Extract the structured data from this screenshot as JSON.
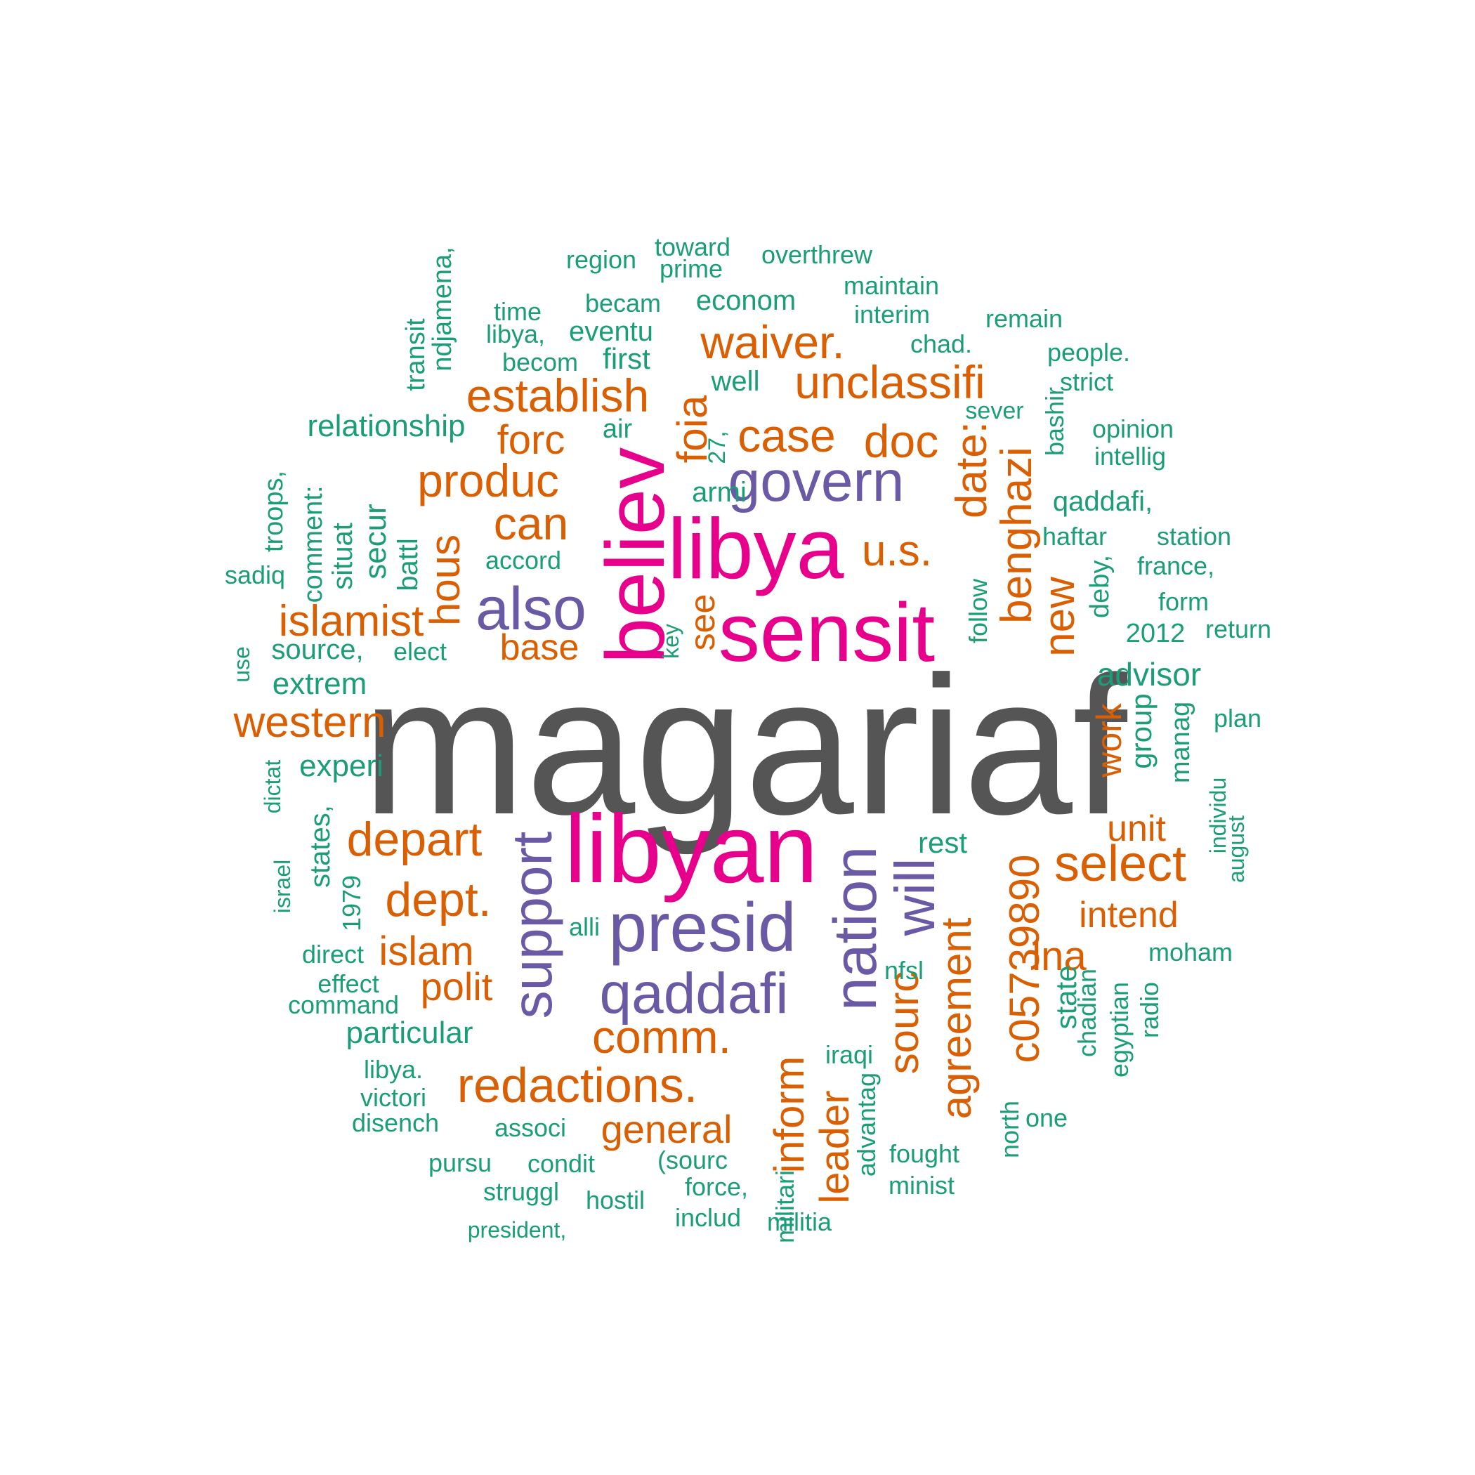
{
  "colors": {
    "top": "#555555",
    "magenta": "#e7008b",
    "purple": "#6a5aa6",
    "orange": "#d95f02",
    "green": "#1b9e77"
  },
  "words": [
    {
      "text": "magariaf",
      "tier": 0,
      "vertical": false
    },
    {
      "text": "libyan",
      "tier": 1,
      "vertical": false
    },
    {
      "text": "libya",
      "tier": 1,
      "vertical": false
    },
    {
      "text": "sensit",
      "tier": 1,
      "vertical": false
    },
    {
      "text": "believ",
      "tier": 1,
      "vertical": true
    },
    {
      "text": "presid",
      "tier": 2,
      "vertical": false
    },
    {
      "text": "qaddafi",
      "tier": 2,
      "vertical": false
    },
    {
      "text": "govern",
      "tier": 2,
      "vertical": false
    },
    {
      "text": "also",
      "tier": 2,
      "vertical": false
    },
    {
      "text": "nation",
      "tier": 2,
      "vertical": true
    },
    {
      "text": "support",
      "tier": 2,
      "vertical": true
    },
    {
      "text": "will",
      "tier": 2,
      "vertical": true
    },
    {
      "text": "waiver.",
      "tier": 3,
      "vertical": false
    },
    {
      "text": "unclassifi",
      "tier": 3,
      "vertical": false
    },
    {
      "text": "establish",
      "tier": 3,
      "vertical": false
    },
    {
      "text": "case",
      "tier": 3,
      "vertical": false
    },
    {
      "text": "doc",
      "tier": 3,
      "vertical": false
    },
    {
      "text": "forc",
      "tier": 3,
      "vertical": false
    },
    {
      "text": "produc",
      "tier": 3,
      "vertical": false
    },
    {
      "text": "can",
      "tier": 3,
      "vertical": false
    },
    {
      "text": "u.s.",
      "tier": 3,
      "vertical": false
    },
    {
      "text": "islamist",
      "tier": 3,
      "vertical": false
    },
    {
      "text": "base",
      "tier": 3,
      "vertical": false
    },
    {
      "text": "western",
      "tier": 3,
      "vertical": false
    },
    {
      "text": "depart",
      "tier": 3,
      "vertical": false
    },
    {
      "text": "dept.",
      "tier": 3,
      "vertical": false
    },
    {
      "text": "islam",
      "tier": 3,
      "vertical": false
    },
    {
      "text": "polit",
      "tier": 3,
      "vertical": false
    },
    {
      "text": "comm.",
      "tier": 3,
      "vertical": false
    },
    {
      "text": "redactions.",
      "tier": 3,
      "vertical": false
    },
    {
      "text": "general",
      "tier": 3,
      "vertical": false
    },
    {
      "text": "select",
      "tier": 3,
      "vertical": false
    },
    {
      "text": "unit",
      "tier": 3,
      "vertical": false
    },
    {
      "text": "intend",
      "tier": 3,
      "vertical": false
    },
    {
      "text": "lna",
      "tier": 3,
      "vertical": false
    },
    {
      "text": "foia",
      "tier": 3,
      "vertical": true
    },
    {
      "text": "hous",
      "tier": 3,
      "vertical": true
    },
    {
      "text": "date:",
      "tier": 3,
      "vertical": true
    },
    {
      "text": "benghazi",
      "tier": 3,
      "vertical": true
    },
    {
      "text": "new",
      "tier": 3,
      "vertical": true
    },
    {
      "text": "see",
      "tier": 3,
      "vertical": true
    },
    {
      "text": "work",
      "tier": 3,
      "vertical": true
    },
    {
      "text": "c05739890",
      "tier": 3,
      "vertical": true
    },
    {
      "text": "agreement",
      "tier": 3,
      "vertical": true
    },
    {
      "text": "sourc",
      "tier": 3,
      "vertical": true
    },
    {
      "text": "inform",
      "tier": 3,
      "vertical": true
    },
    {
      "text": "leader",
      "tier": 3,
      "vertical": true
    },
    {
      "text": "region",
      "tier": 4,
      "vertical": false
    },
    {
      "text": "toward",
      "tier": 4,
      "vertical": false
    },
    {
      "text": "prime",
      "tier": 4,
      "vertical": false
    },
    {
      "text": "overthrew",
      "tier": 4,
      "vertical": false
    },
    {
      "text": "maintain",
      "tier": 4,
      "vertical": false
    },
    {
      "text": "time",
      "tier": 4,
      "vertical": false
    },
    {
      "text": "becam",
      "tier": 4,
      "vertical": false
    },
    {
      "text": "econom",
      "tier": 4,
      "vertical": false
    },
    {
      "text": "interim",
      "tier": 4,
      "vertical": false
    },
    {
      "text": "remain",
      "tier": 4,
      "vertical": false
    },
    {
      "text": "libya,",
      "tier": 4,
      "vertical": false
    },
    {
      "text": "eventu",
      "tier": 4,
      "vertical": false
    },
    {
      "text": "chad.",
      "tier": 4,
      "vertical": false
    },
    {
      "text": "people.",
      "tier": 4,
      "vertical": false
    },
    {
      "text": "becom",
      "tier": 4,
      "vertical": false
    },
    {
      "text": "first",
      "tier": 4,
      "vertical": false
    },
    {
      "text": "well",
      "tier": 4,
      "vertical": false
    },
    {
      "text": "strict",
      "tier": 4,
      "vertical": false
    },
    {
      "text": "sever",
      "tier": 4,
      "vertical": false
    },
    {
      "text": "relationship",
      "tier": 4,
      "vertical": false
    },
    {
      "text": "air",
      "tier": 4,
      "vertical": false
    },
    {
      "text": "opinion",
      "tier": 4,
      "vertical": false
    },
    {
      "text": "intellig",
      "tier": 4,
      "vertical": false
    },
    {
      "text": "armi",
      "tier": 4,
      "vertical": false
    },
    {
      "text": "qaddafi,",
      "tier": 4,
      "vertical": false
    },
    {
      "text": "haftar",
      "tier": 4,
      "vertical": false
    },
    {
      "text": "station",
      "tier": 4,
      "vertical": false
    },
    {
      "text": "accord",
      "tier": 4,
      "vertical": false
    },
    {
      "text": "sadiq",
      "tier": 4,
      "vertical": false
    },
    {
      "text": "france,",
      "tier": 4,
      "vertical": false
    },
    {
      "text": "form",
      "tier": 4,
      "vertical": false
    },
    {
      "text": "2012",
      "tier": 4,
      "vertical": false
    },
    {
      "text": "return",
      "tier": 4,
      "vertical": false
    },
    {
      "text": "source,",
      "tier": 4,
      "vertical": false
    },
    {
      "text": "elect",
      "tier": 4,
      "vertical": false
    },
    {
      "text": "advisor",
      "tier": 4,
      "vertical": false
    },
    {
      "text": "extrem",
      "tier": 4,
      "vertical": false
    },
    {
      "text": "plan",
      "tier": 4,
      "vertical": false
    },
    {
      "text": "experi",
      "tier": 4,
      "vertical": false
    },
    {
      "text": "rest",
      "tier": 4,
      "vertical": false
    },
    {
      "text": "alli",
      "tier": 4,
      "vertical": false
    },
    {
      "text": "direct",
      "tier": 4,
      "vertical": false
    },
    {
      "text": "moham",
      "tier": 4,
      "vertical": false
    },
    {
      "text": "effect",
      "tier": 4,
      "vertical": false
    },
    {
      "text": "nfsl",
      "tier": 4,
      "vertical": false
    },
    {
      "text": "command",
      "tier": 4,
      "vertical": false
    },
    {
      "text": "particular",
      "tier": 4,
      "vertical": false
    },
    {
      "text": "iraqi",
      "tier": 4,
      "vertical": false
    },
    {
      "text": "libya.",
      "tier": 4,
      "vertical": false
    },
    {
      "text": "victori",
      "tier": 4,
      "vertical": false
    },
    {
      "text": "disench",
      "tier": 4,
      "vertical": false
    },
    {
      "text": "associ",
      "tier": 4,
      "vertical": false
    },
    {
      "text": "one",
      "tier": 4,
      "vertical": false
    },
    {
      "text": "fought",
      "tier": 4,
      "vertical": false
    },
    {
      "text": "pursu",
      "tier": 4,
      "vertical": false
    },
    {
      "text": "condit",
      "tier": 4,
      "vertical": false
    },
    {
      "text": "(sourc",
      "tier": 4,
      "vertical": false
    },
    {
      "text": "minist",
      "tier": 4,
      "vertical": false
    },
    {
      "text": "struggl",
      "tier": 4,
      "vertical": false
    },
    {
      "text": "force,",
      "tier": 4,
      "vertical": false
    },
    {
      "text": "hostil",
      "tier": 4,
      "vertical": false
    },
    {
      "text": "includ",
      "tier": 4,
      "vertical": false
    },
    {
      "text": "militia",
      "tier": 4,
      "vertical": false
    },
    {
      "text": "president,",
      "tier": 4,
      "vertical": false
    },
    {
      "text": "transit",
      "tier": 4,
      "vertical": true
    },
    {
      "text": "ndjamena,",
      "tier": 4,
      "vertical": true
    },
    {
      "text": "bashir",
      "tier": 4,
      "vertical": true
    },
    {
      "text": "27,",
      "tier": 4,
      "vertical": true
    },
    {
      "text": "troops,",
      "tier": 4,
      "vertical": true
    },
    {
      "text": "comment:",
      "tier": 4,
      "vertical": true
    },
    {
      "text": "situat",
      "tier": 4,
      "vertical": true
    },
    {
      "text": "secur",
      "tier": 4,
      "vertical": true
    },
    {
      "text": "battl",
      "tier": 4,
      "vertical": true
    },
    {
      "text": "deby,",
      "tier": 4,
      "vertical": true
    },
    {
      "text": "follow",
      "tier": 4,
      "vertical": true
    },
    {
      "text": "key",
      "tier": 4,
      "vertical": true
    },
    {
      "text": "use",
      "tier": 4,
      "vertical": true
    },
    {
      "text": "group",
      "tier": 4,
      "vertical": true
    },
    {
      "text": "manag",
      "tier": 4,
      "vertical": true
    },
    {
      "text": "dictat",
      "tier": 4,
      "vertical": true
    },
    {
      "text": "individu",
      "tier": 4,
      "vertical": true
    },
    {
      "text": "august",
      "tier": 4,
      "vertical": true
    },
    {
      "text": "states,",
      "tier": 4,
      "vertical": true
    },
    {
      "text": "israel",
      "tier": 4,
      "vertical": true
    },
    {
      "text": "1979",
      "tier": 4,
      "vertical": true
    },
    {
      "text": "state",
      "tier": 4,
      "vertical": true
    },
    {
      "text": "chadian",
      "tier": 4,
      "vertical": true
    },
    {
      "text": "egyptian",
      "tier": 4,
      "vertical": true
    },
    {
      "text": "radio",
      "tier": 4,
      "vertical": true
    },
    {
      "text": "advantag",
      "tier": 4,
      "vertical": true
    },
    {
      "text": "militari",
      "tier": 4,
      "vertical": true
    },
    {
      "text": "north",
      "tier": 4,
      "vertical": true
    }
  ]
}
